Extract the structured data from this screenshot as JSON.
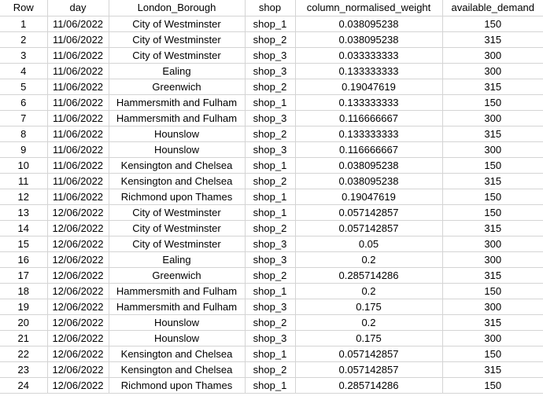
{
  "columns": [
    "Row",
    "day",
    "London_Borough",
    "shop",
    "column_normalised_weight",
    "available_demand"
  ],
  "rows": [
    [
      "1",
      "11/06/2022",
      "City of Westminster",
      "shop_1",
      "0.038095238",
      "150"
    ],
    [
      "2",
      "11/06/2022",
      "City of Westminster",
      "shop_2",
      "0.038095238",
      "315"
    ],
    [
      "3",
      "11/06/2022",
      "City of Westminster",
      "shop_3",
      "0.033333333",
      "300"
    ],
    [
      "4",
      "11/06/2022",
      "Ealing",
      "shop_3",
      "0.133333333",
      "300"
    ],
    [
      "5",
      "11/06/2022",
      "Greenwich",
      "shop_2",
      "0.19047619",
      "315"
    ],
    [
      "6",
      "11/06/2022",
      "Hammersmith and Fulham",
      "shop_1",
      "0.133333333",
      "150"
    ],
    [
      "7",
      "11/06/2022",
      "Hammersmith and Fulham",
      "shop_3",
      "0.116666667",
      "300"
    ],
    [
      "8",
      "11/06/2022",
      "Hounslow",
      "shop_2",
      "0.133333333",
      "315"
    ],
    [
      "9",
      "11/06/2022",
      "Hounslow",
      "shop_3",
      "0.116666667",
      "300"
    ],
    [
      "10",
      "11/06/2022",
      "Kensington and Chelsea",
      "shop_1",
      "0.038095238",
      "150"
    ],
    [
      "11",
      "11/06/2022",
      "Kensington and Chelsea",
      "shop_2",
      "0.038095238",
      "315"
    ],
    [
      "12",
      "11/06/2022",
      "Richmond upon Thames",
      "shop_1",
      "0.19047619",
      "150"
    ],
    [
      "13",
      "12/06/2022",
      "City of Westminster",
      "shop_1",
      "0.057142857",
      "150"
    ],
    [
      "14",
      "12/06/2022",
      "City of Westminster",
      "shop_2",
      "0.057142857",
      "315"
    ],
    [
      "15",
      "12/06/2022",
      "City of Westminster",
      "shop_3",
      "0.05",
      "300"
    ],
    [
      "16",
      "12/06/2022",
      "Ealing",
      "shop_3",
      "0.2",
      "300"
    ],
    [
      "17",
      "12/06/2022",
      "Greenwich",
      "shop_2",
      "0.285714286",
      "315"
    ],
    [
      "18",
      "12/06/2022",
      "Hammersmith and Fulham",
      "shop_1",
      "0.2",
      "150"
    ],
    [
      "19",
      "12/06/2022",
      "Hammersmith and Fulham",
      "shop_3",
      "0.175",
      "300"
    ],
    [
      "20",
      "12/06/2022",
      "Hounslow",
      "shop_2",
      "0.2",
      "315"
    ],
    [
      "21",
      "12/06/2022",
      "Hounslow",
      "shop_3",
      "0.175",
      "300"
    ],
    [
      "22",
      "12/06/2022",
      "Kensington and Chelsea",
      "shop_1",
      "0.057142857",
      "150"
    ],
    [
      "23",
      "12/06/2022",
      "Kensington and Chelsea",
      "shop_2",
      "0.057142857",
      "315"
    ],
    [
      "24",
      "12/06/2022",
      "Richmond upon Thames",
      "shop_1",
      "0.285714286",
      "150"
    ]
  ]
}
